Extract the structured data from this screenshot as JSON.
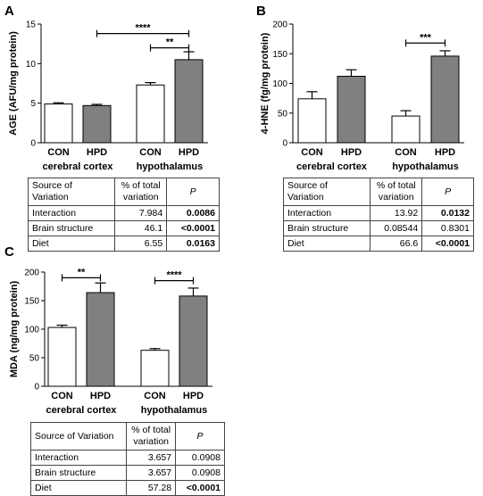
{
  "panels": [
    {
      "letter": "A",
      "chart_data": {
        "type": "bar",
        "ylabel": "AGE (AFU/mg protein)",
        "ylim": [
          0,
          15
        ],
        "yticks": [
          "0",
          "5",
          "10",
          "15"
        ],
        "categories": [
          "CON",
          "HPD",
          "CON",
          "HPD"
        ],
        "groups": [
          "cerebral cortex",
          "hypothalamus"
        ],
        "values": [
          4.9,
          4.7,
          7.3,
          10.5
        ],
        "errors": [
          0.15,
          0.15,
          0.3,
          1.0
        ],
        "fills": [
          "#ffffff",
          "#808080",
          "#ffffff",
          "#808080"
        ],
        "significance": [
          {
            "label": "****",
            "from": 1,
            "to": 3,
            "y": 13.8
          },
          {
            "label": "**",
            "from": 2,
            "to": 3,
            "y": 12.0
          }
        ]
      },
      "table": {
        "headers": [
          "Source of Variation",
          "% of total variation",
          "P"
        ],
        "rows": [
          [
            "Interaction",
            "7.984",
            "0.0086"
          ],
          [
            "Brain structure",
            "46.1",
            "<0.0001"
          ],
          [
            "Diet",
            "6.55",
            "0.0163"
          ]
        ],
        "bold_p": [
          true,
          true,
          true
        ]
      }
    },
    {
      "letter": "B",
      "chart_data": {
        "type": "bar",
        "ylabel": "4-HNE (fg/mg protein)",
        "ylim": [
          0,
          200
        ],
        "yticks": [
          "0",
          "50",
          "100",
          "150",
          "200"
        ],
        "categories": [
          "CON",
          "HPD",
          "CON",
          "HPD"
        ],
        "groups": [
          "cerebral cortex",
          "hypothalamus"
        ],
        "values": [
          74,
          112,
          45,
          146
        ],
        "errors": [
          12,
          11,
          9,
          9
        ],
        "fills": [
          "#ffffff",
          "#808080",
          "#ffffff",
          "#808080"
        ],
        "significance": [
          {
            "label": "***",
            "from": 2,
            "to": 3,
            "y": 168
          }
        ]
      },
      "table": {
        "headers": [
          "Source of Variation",
          "% of total variation",
          "P"
        ],
        "rows": [
          [
            "Interaction",
            "13.92",
            "0.0132"
          ],
          [
            "Brain structure",
            "0.08544",
            "0.8301"
          ],
          [
            "Diet",
            "66.6",
            "<0.0001"
          ]
        ],
        "bold_p": [
          true,
          false,
          true
        ]
      }
    },
    {
      "letter": "C",
      "chart_data": {
        "type": "bar",
        "ylabel": "MDA (ng/mg protein)",
        "ylim": [
          0,
          200
        ],
        "yticks": [
          "0",
          "50",
          "100",
          "150",
          "200"
        ],
        "categories": [
          "CON",
          "HPD",
          "CON",
          "HPD"
        ],
        "groups": [
          "cerebral cortex",
          "hypothalamus"
        ],
        "values": [
          103,
          164,
          63,
          158
        ],
        "errors": [
          4,
          17,
          3,
          14
        ],
        "fills": [
          "#ffffff",
          "#808080",
          "#ffffff",
          "#808080"
        ],
        "significance": [
          {
            "label": "**",
            "from": 0,
            "to": 1,
            "y": 190
          },
          {
            "label": "****",
            "from": 2,
            "to": 3,
            "y": 185
          }
        ]
      },
      "table": {
        "headers": [
          "Source of Variation",
          "% of total variation",
          "P"
        ],
        "rows": [
          [
            "Interaction",
            "3.657",
            "0.0908"
          ],
          [
            "Brain structure",
            "3.657",
            "0.0908"
          ],
          [
            "Diet",
            "57.28",
            "<0.0001"
          ]
        ],
        "bold_p": [
          false,
          false,
          true
        ]
      }
    }
  ]
}
